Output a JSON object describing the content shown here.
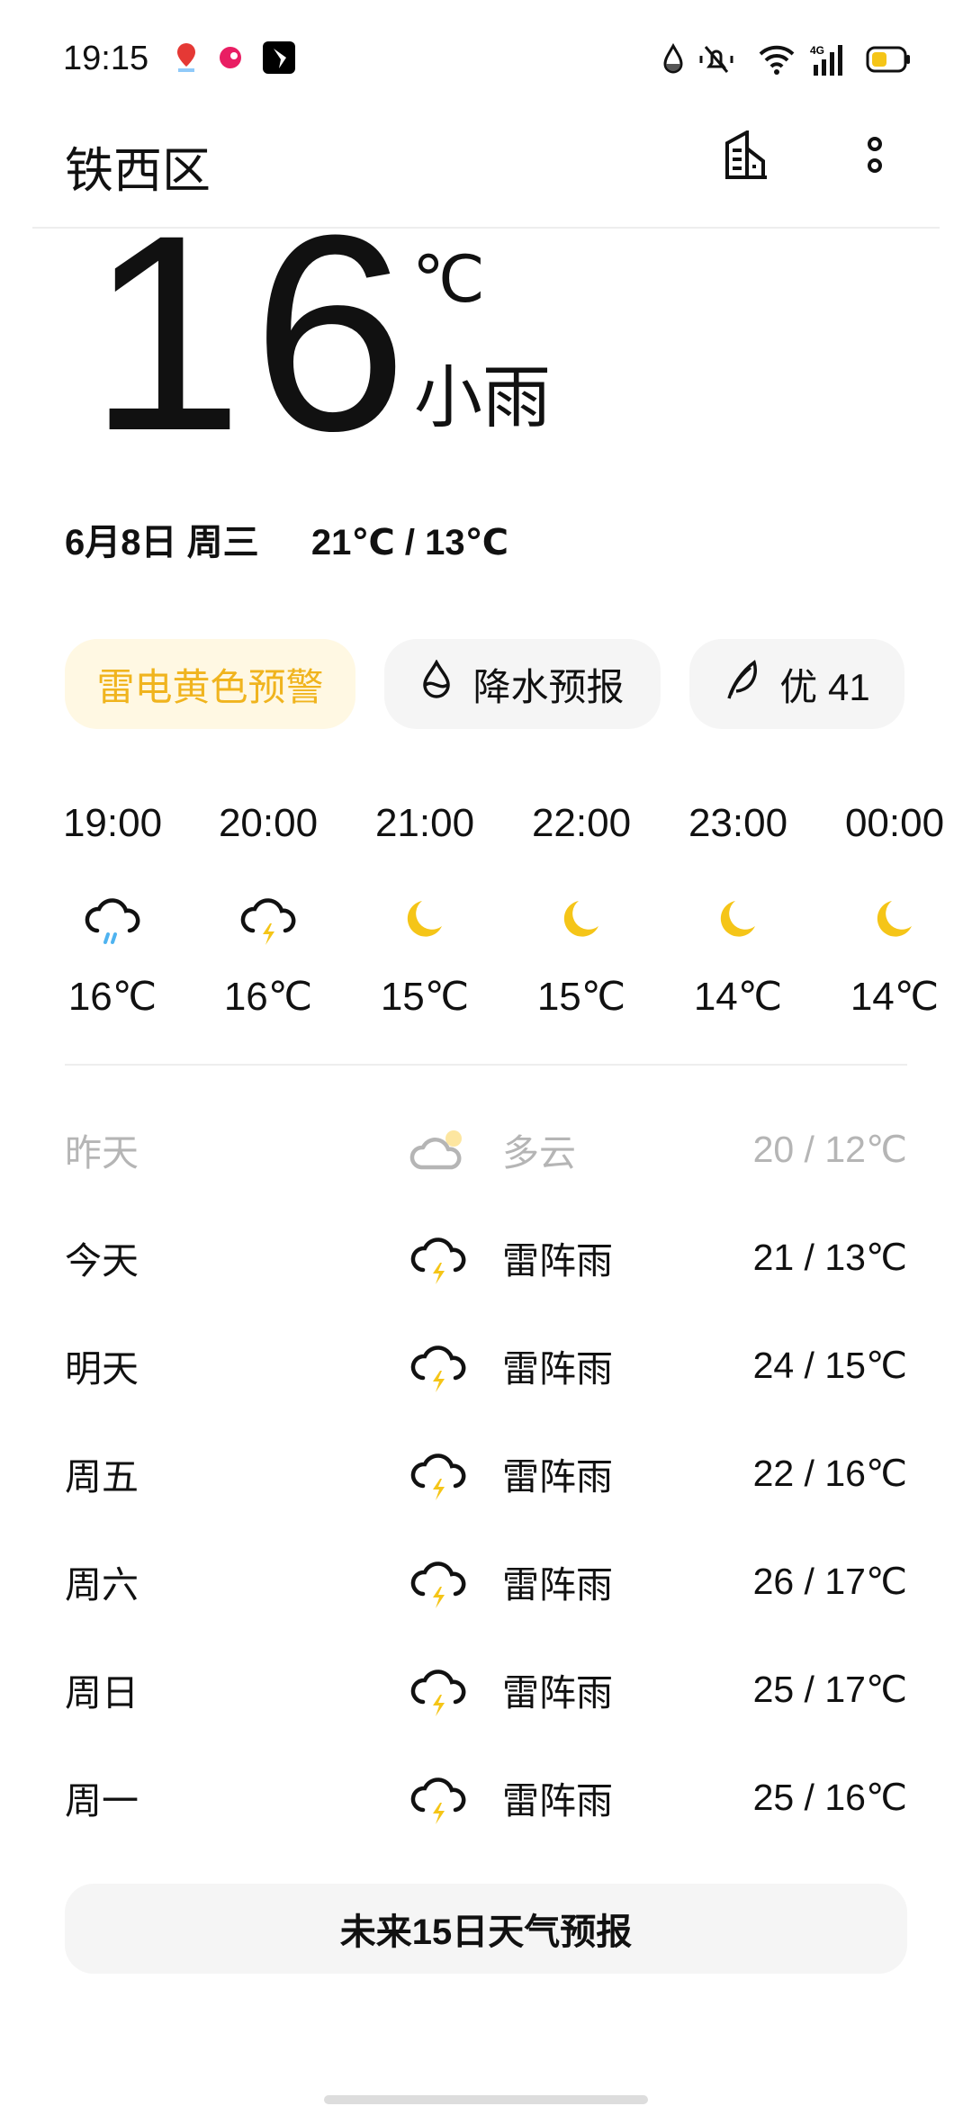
{
  "status_bar": {
    "time": "19:15",
    "notifications": [
      "baidu-maps-icon",
      "app-bird-icon",
      "app-feather-icon"
    ],
    "system_icons": [
      "data-saver-icon",
      "mute-icon",
      "wifi-icon",
      "4g-signal-icon",
      "battery-icon"
    ],
    "network": "4G",
    "battery_color": "#f5c518"
  },
  "header": {
    "city": "铁西区",
    "actions": [
      "city-manage-icon",
      "more-icon"
    ]
  },
  "current": {
    "temp": "16",
    "unit": "℃",
    "condition": "小雨",
    "date": "6月8日 周三",
    "range": "21℃ / 13℃"
  },
  "chips": [
    {
      "label": "雷电黄色预警",
      "icon": null,
      "color": "#f0b41e"
    },
    {
      "label": "降水预报",
      "icon": "drop-icon"
    },
    {
      "label": "优 41",
      "icon": "leaf-icon"
    }
  ],
  "hourly": [
    {
      "time": "19:00",
      "icon": "rain",
      "temp": "16℃"
    },
    {
      "time": "20:00",
      "icon": "thunder",
      "temp": "16℃"
    },
    {
      "time": "21:00",
      "icon": "moon",
      "temp": "15℃"
    },
    {
      "time": "22:00",
      "icon": "moon",
      "temp": "15℃"
    },
    {
      "time": "23:00",
      "icon": "moon",
      "temp": "14℃"
    },
    {
      "time": "00:00",
      "icon": "moon",
      "temp": "14℃"
    }
  ],
  "daily": [
    {
      "day": "昨天",
      "icon": "partly-cloudy",
      "condition": "多云",
      "temps": "20 / 12℃",
      "past": true
    },
    {
      "day": "今天",
      "icon": "thunder",
      "condition": "雷阵雨",
      "temps": "21 / 13℃"
    },
    {
      "day": "明天",
      "icon": "thunder",
      "condition": "雷阵雨",
      "temps": "24 / 15℃"
    },
    {
      "day": "周五",
      "icon": "thunder",
      "condition": "雷阵雨",
      "temps": "22 / 16℃"
    },
    {
      "day": "周六",
      "icon": "thunder",
      "condition": "雷阵雨",
      "temps": "26 / 17℃"
    },
    {
      "day": "周日",
      "icon": "thunder",
      "condition": "雷阵雨",
      "temps": "25 / 17℃"
    },
    {
      "day": "周一",
      "icon": "thunder",
      "condition": "雷阵雨",
      "temps": "25 / 16℃"
    }
  ],
  "forecast_button": "未来15日天气预报",
  "colors": {
    "accent_yellow": "#f5c518",
    "rain_blue": "#4fb3f0"
  }
}
